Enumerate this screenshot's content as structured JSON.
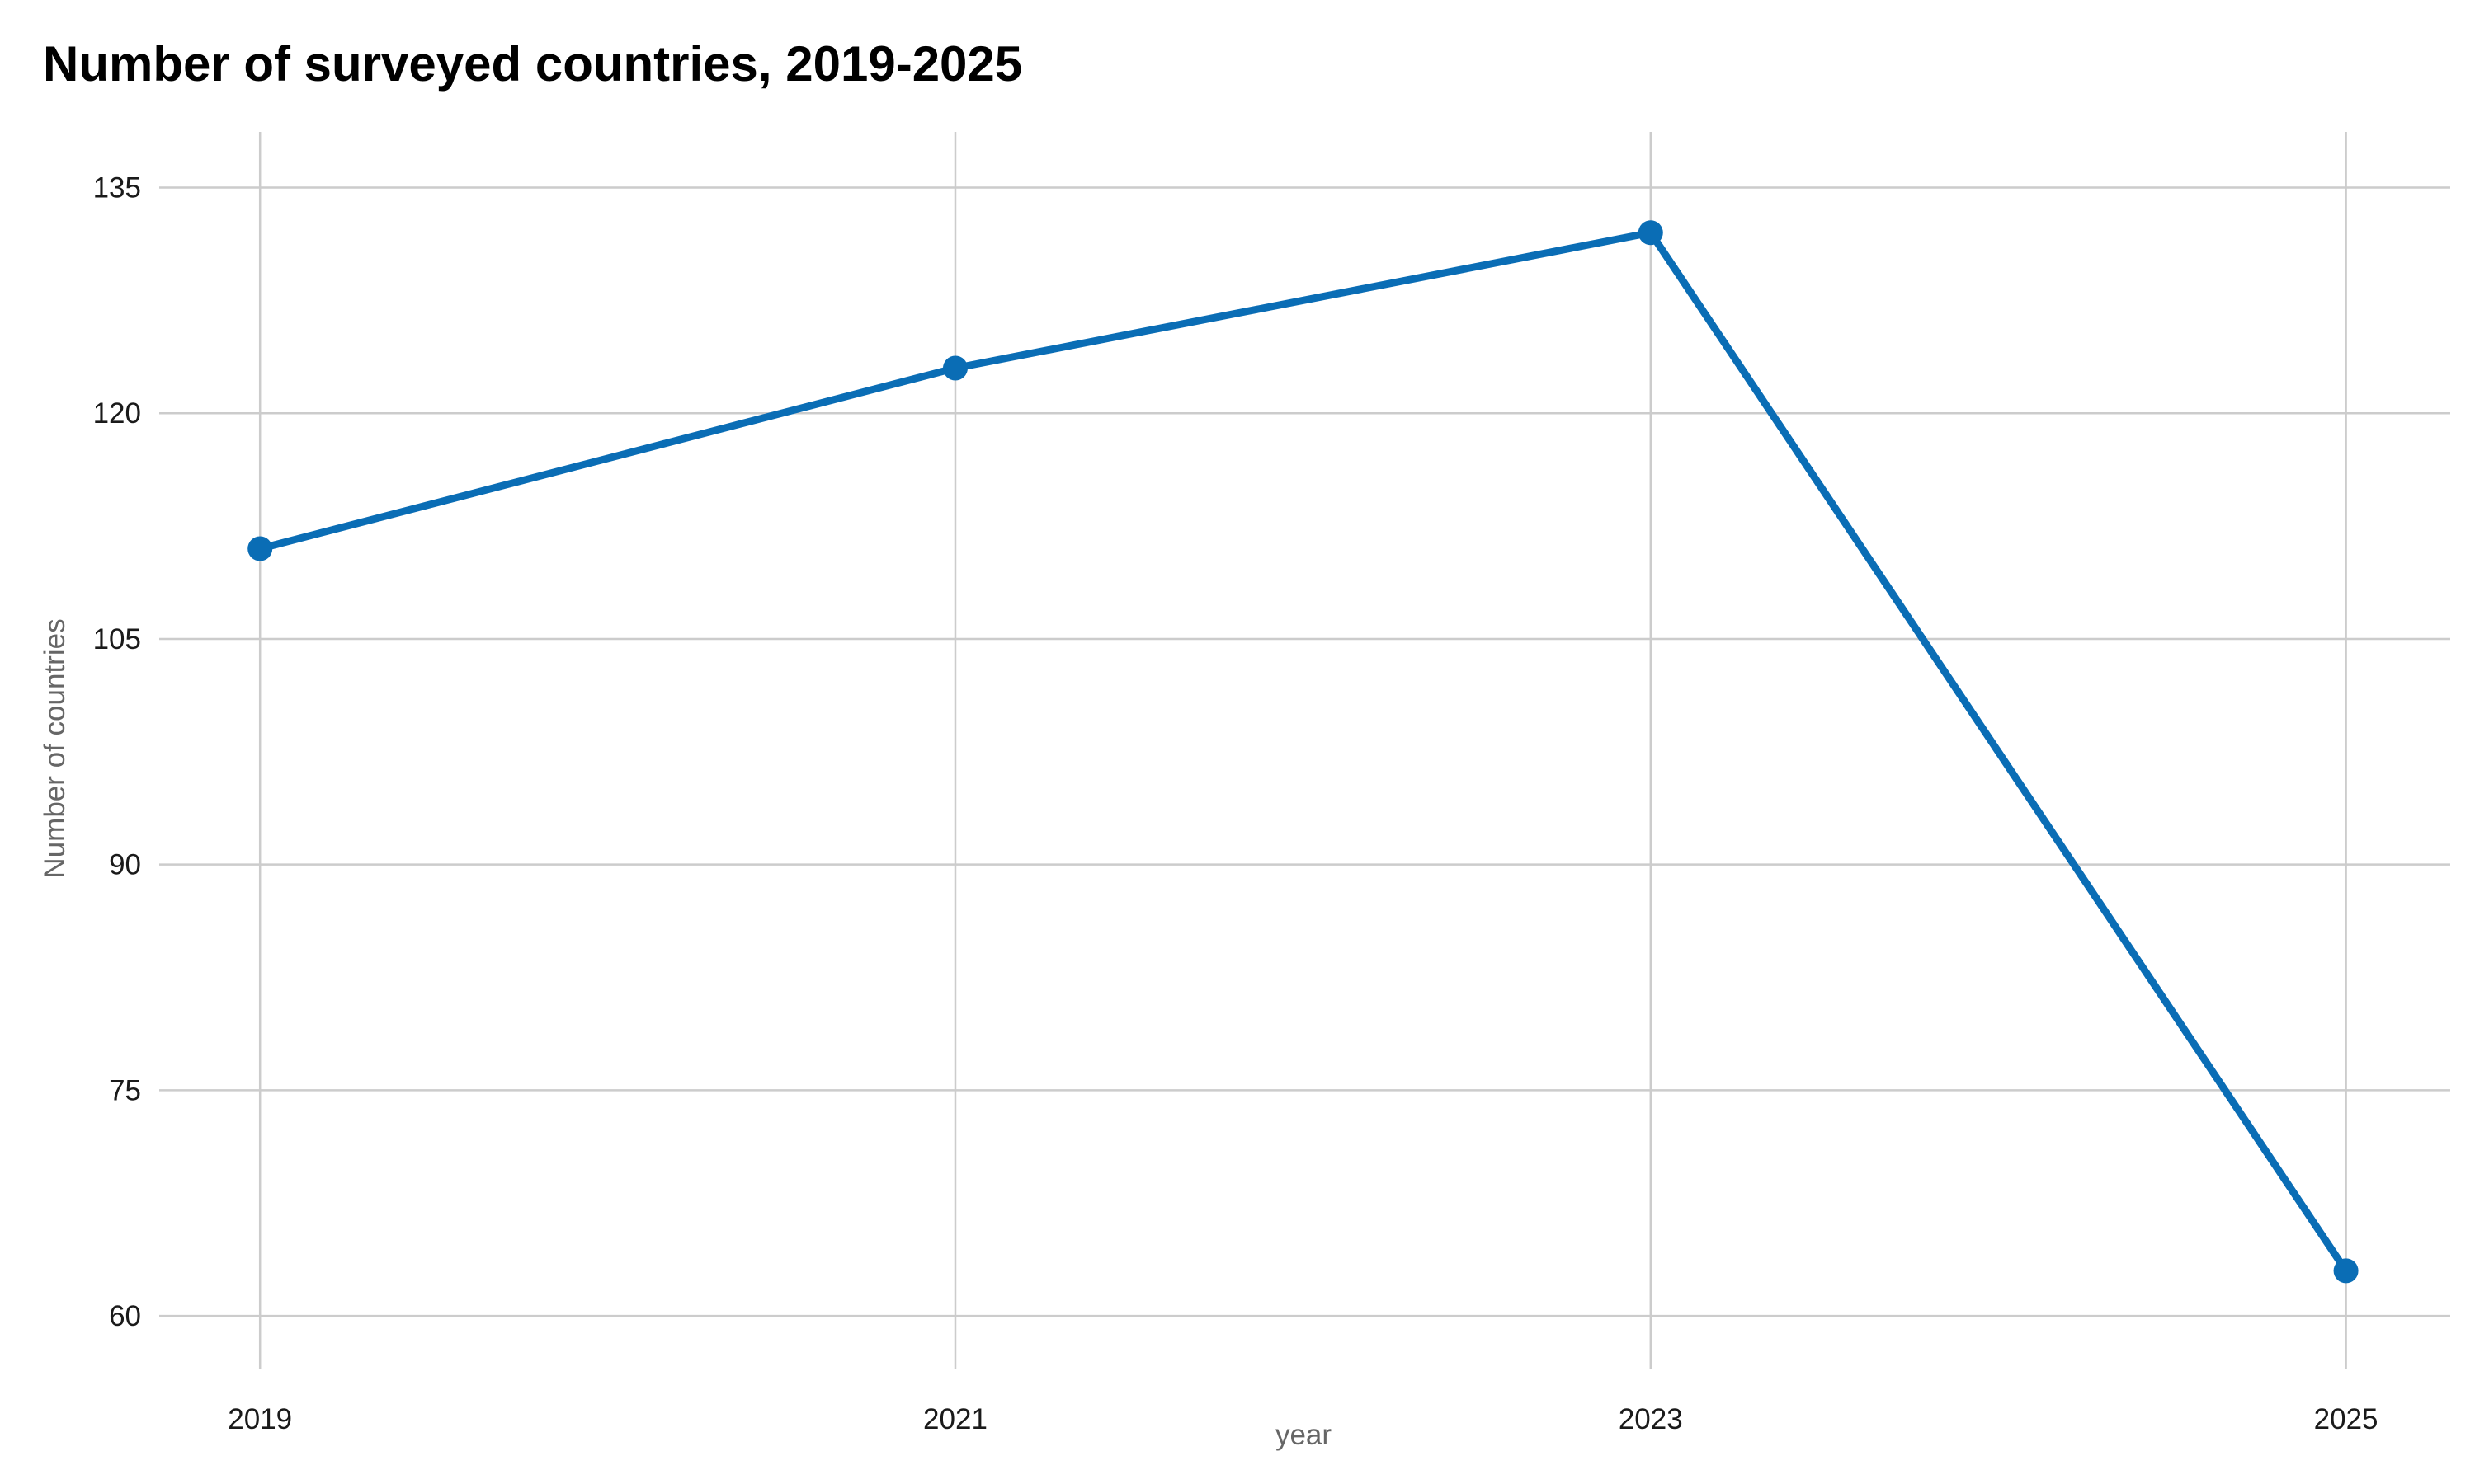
{
  "chart_data": {
    "type": "line",
    "title": "Number of surveyed countries, 2019-2025",
    "xlabel": "year",
    "ylabel": "Number of countries",
    "x": [
      2019,
      2021,
      2023,
      2025
    ],
    "series": [
      {
        "values": [
          111,
          123,
          132,
          63
        ],
        "color": "#0a6db5"
      }
    ],
    "xticks": [
      "2019",
      "2021",
      "2023",
      "2025"
    ],
    "yticks": [
      60,
      75,
      90,
      105,
      120,
      135
    ],
    "ylim": [
      56.5,
      138.7
    ],
    "xlim": [
      2018.71,
      2025.3
    ],
    "grid": true,
    "grid_color": "#cccccc",
    "legend": "none"
  }
}
